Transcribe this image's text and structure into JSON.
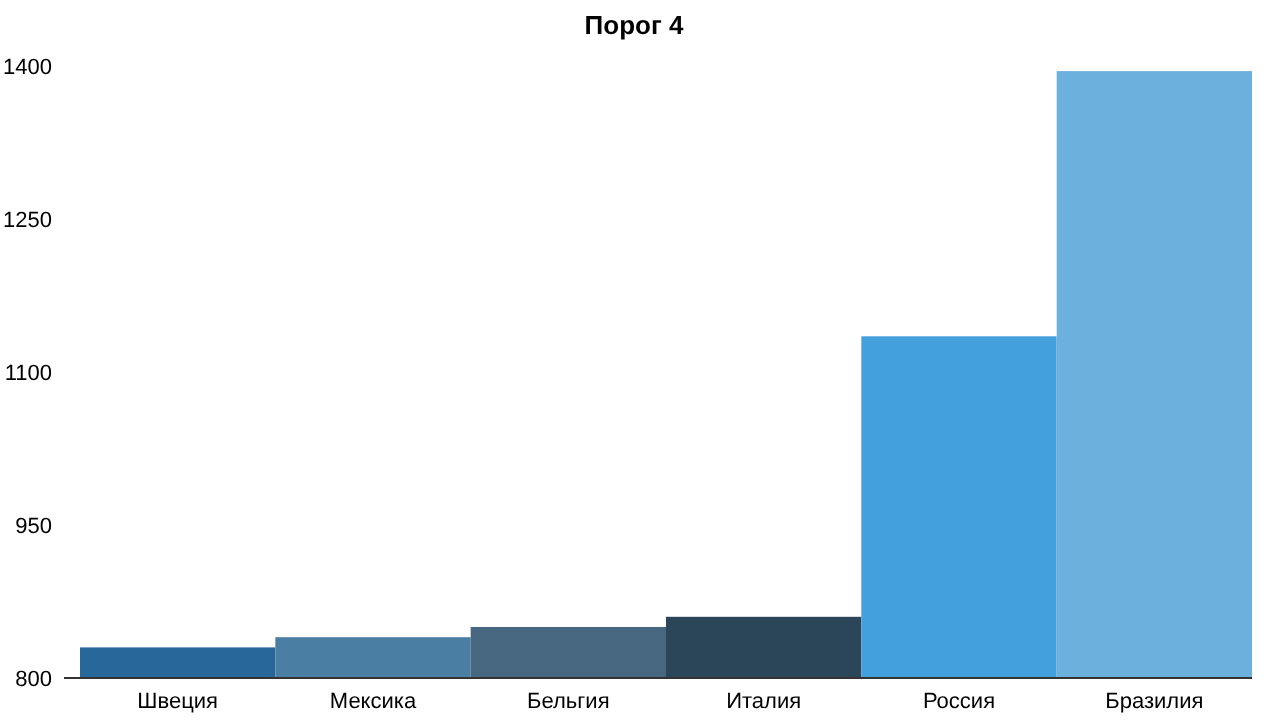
{
  "chart_data": {
    "type": "bar",
    "title": "Порог 4",
    "categories": [
      "Швеция",
      "Мексика",
      "Бельгия",
      "Италия",
      "Россия",
      "Бразилия"
    ],
    "values": [
      830,
      840,
      850,
      860,
      1135,
      1395
    ],
    "colors": [
      "#28679a",
      "#4a7fa3",
      "#46677f",
      "#2b4559",
      "#43a0dc",
      "#6cb0dd"
    ],
    "ylim": [
      800,
      1400
    ],
    "yticks": [
      800,
      950,
      1100,
      1250,
      1400
    ],
    "grid": false
  }
}
